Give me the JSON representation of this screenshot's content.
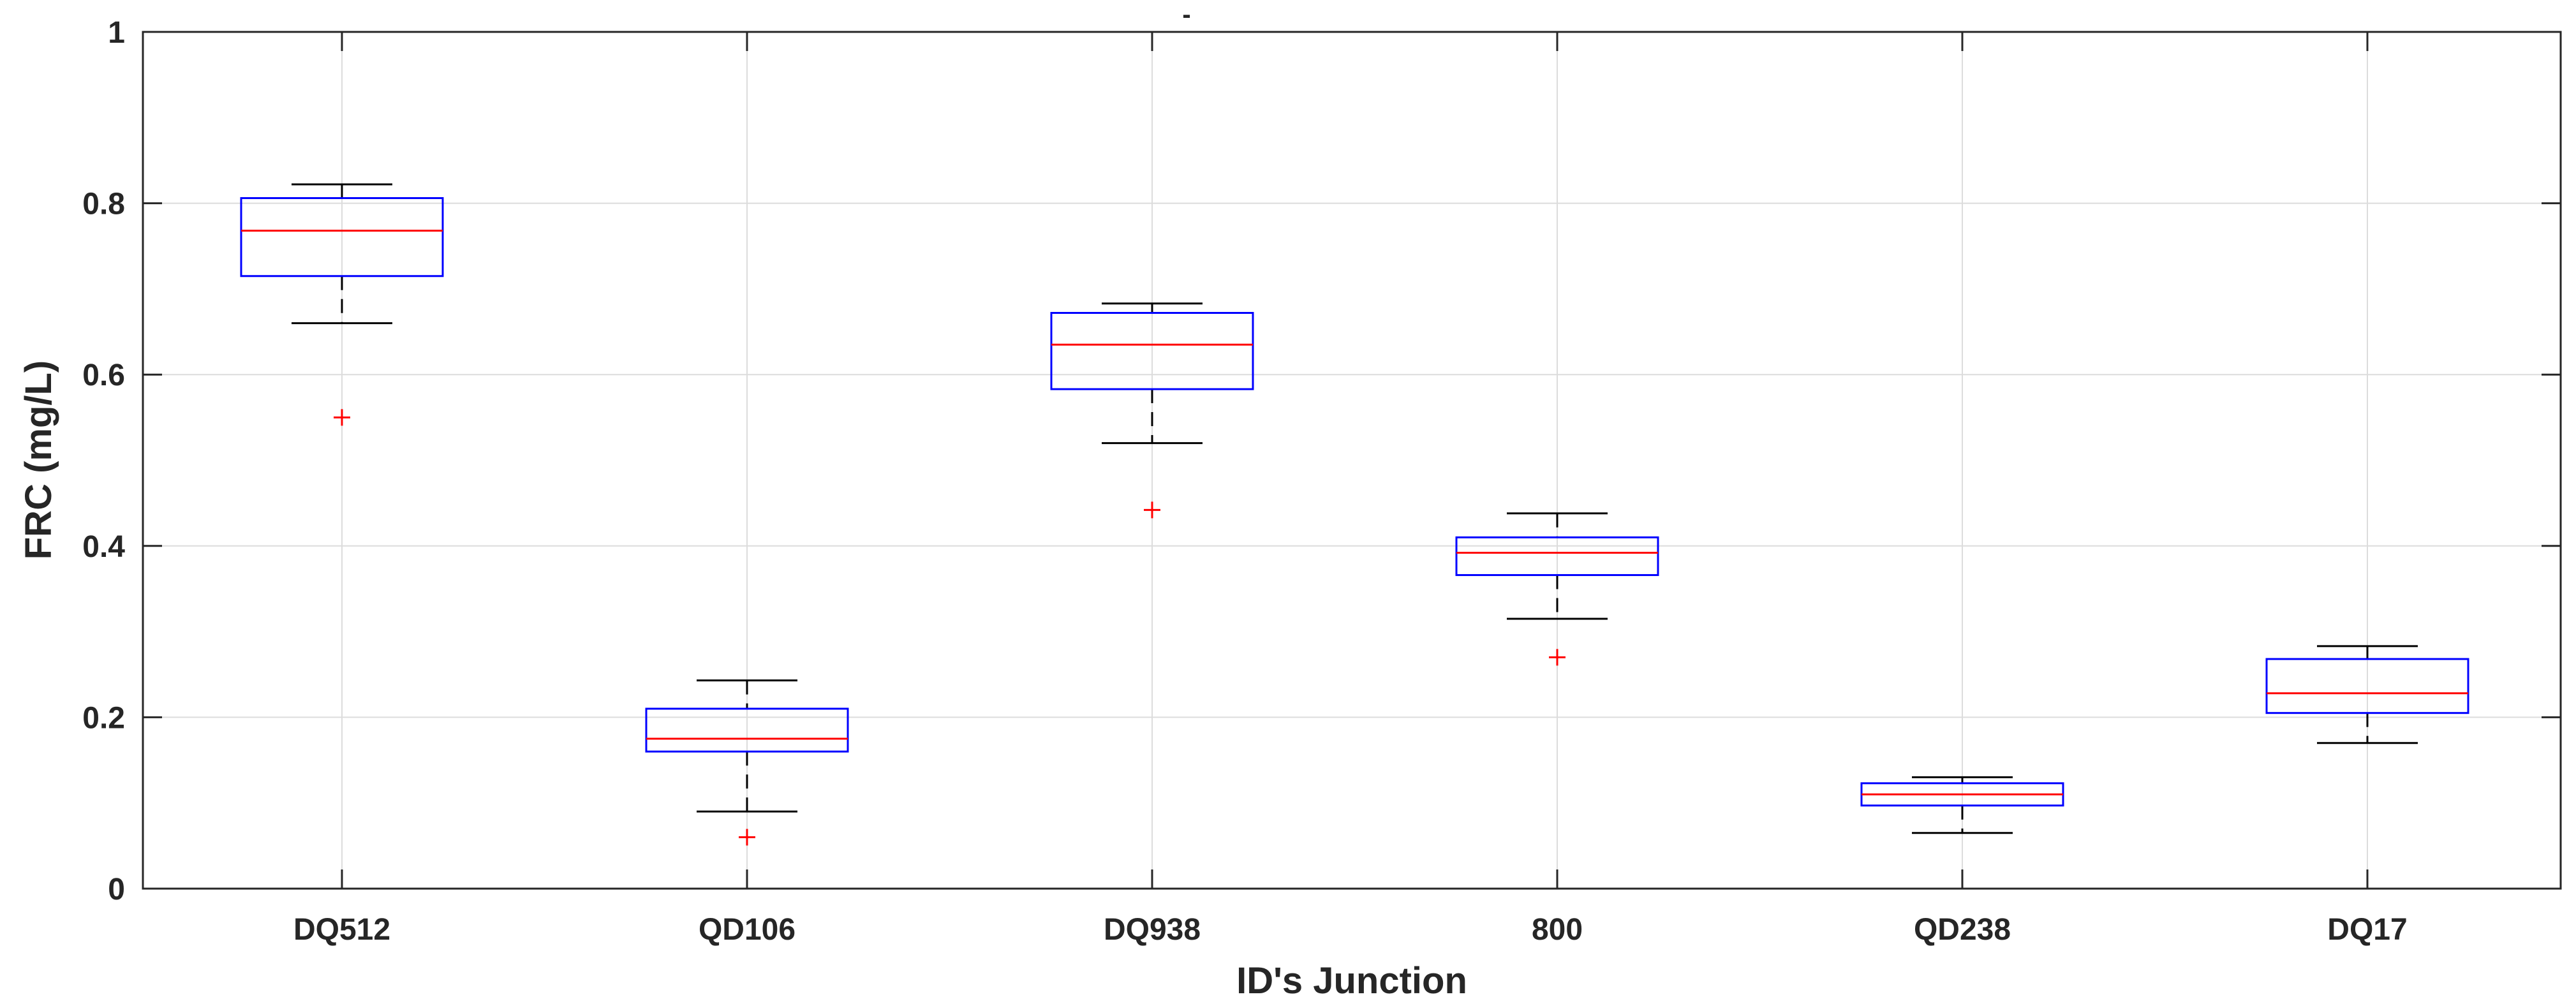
{
  "chart_data": {
    "type": "boxplot",
    "title": "-",
    "xlabel": "ID's Junction",
    "ylabel": "FRC (mg/L)",
    "ylim": [
      0,
      1
    ],
    "yticks": [
      0,
      0.2,
      0.4,
      0.6,
      0.8,
      1
    ],
    "ytick_labels": [
      "0",
      "0.2",
      "0.4",
      "0.6",
      "0.8",
      "1"
    ],
    "grid": true,
    "categories": [
      "DQ512",
      "QD106",
      "DQ938",
      "800",
      "QD238",
      "DQ17"
    ],
    "boxes": [
      {
        "name": "DQ512",
        "whisker_low": 0.66,
        "q1": 0.715,
        "median": 0.768,
        "q3": 0.806,
        "whisker_high": 0.822,
        "outliers": [
          0.55
        ]
      },
      {
        "name": "QD106",
        "whisker_low": 0.09,
        "q1": 0.16,
        "median": 0.175,
        "q3": 0.21,
        "whisker_high": 0.243,
        "outliers": [
          0.06
        ]
      },
      {
        "name": "DQ938",
        "whisker_low": 0.52,
        "q1": 0.583,
        "median": 0.635,
        "q3": 0.672,
        "whisker_high": 0.683,
        "outliers": [
          0.442
        ]
      },
      {
        "name": "800",
        "whisker_low": 0.315,
        "q1": 0.366,
        "median": 0.392,
        "q3": 0.41,
        "whisker_high": 0.438,
        "outliers": [
          0.27
        ]
      },
      {
        "name": "QD238",
        "whisker_low": 0.065,
        "q1": 0.097,
        "median": 0.11,
        "q3": 0.123,
        "whisker_high": 0.13,
        "outliers": []
      },
      {
        "name": "DQ17",
        "whisker_low": 0.17,
        "q1": 0.205,
        "median": 0.228,
        "q3": 0.268,
        "whisker_high": 0.283,
        "outliers": []
      }
    ],
    "colors": {
      "box": "#0000ff",
      "median": "#ff0000",
      "whisker": "#000000",
      "outlier": "#ff0000",
      "axis": "#262626",
      "grid": "#dcdcdc"
    }
  }
}
